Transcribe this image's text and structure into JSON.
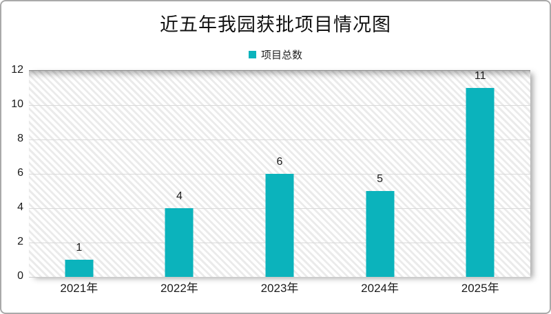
{
  "frame": {
    "border_color": "#a9a9a9",
    "background": "#ffffff"
  },
  "chart_data": {
    "type": "bar",
    "title": "近五年我园获批项目情况图",
    "categories": [
      "2021年",
      "2022年",
      "2023年",
      "2024年",
      "2025年"
    ],
    "series": [
      {
        "name": "项目总数",
        "color": "#0bb3bc",
        "values": [
          1,
          4,
          6,
          5,
          11
        ]
      }
    ],
    "data_labels": [
      "1",
      "4",
      "6",
      "5",
      "11"
    ],
    "legend": {
      "label": "项目总数",
      "position": "top",
      "marker": "square"
    },
    "xlabel": "",
    "ylabel": "",
    "ylim": [
      0,
      12
    ],
    "yticks": [
      "0",
      "2",
      "4",
      "6",
      "8",
      "10",
      "12"
    ],
    "ytick_values": [
      0,
      2,
      4,
      6,
      8,
      10,
      12
    ],
    "gridline_values": [
      2,
      4,
      6,
      8,
      10
    ],
    "grid": true,
    "plot_background": "light-diagonal-hatch",
    "gridline_color": "#d9d9d9",
    "text_color": "#1a1a1a"
  }
}
